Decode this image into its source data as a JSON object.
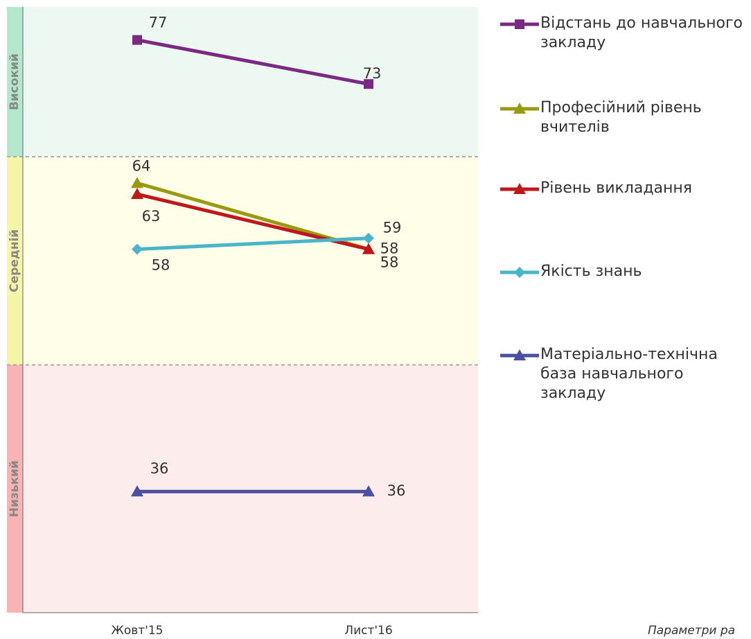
{
  "chart_data": {
    "type": "line",
    "categories": [
      "Жовт'15",
      "Лист'16"
    ],
    "ylim": [
      25,
      80
    ],
    "bands": [
      {
        "label": "Високий",
        "from": 66.4,
        "to": 80,
        "color": "#eef8f3",
        "side_color": "#b3e8cc"
      },
      {
        "label": "Середній",
        "from": 47.5,
        "to": 66.4,
        "color": "#fefee9",
        "side_color": "#f5f5a8"
      },
      {
        "label": "Низький",
        "from": 25,
        "to": 47.5,
        "color": "#fdecec",
        "side_color": "#f9b3b3"
      }
    ],
    "series": [
      {
        "name": "Відстань до навчального закладу",
        "color": "#7b2a84",
        "marker": "square",
        "values": [
          77,
          73
        ]
      },
      {
        "name": "Професійний рівень вчителів",
        "color": "#9a9a10",
        "marker": "triangle",
        "values": [
          64,
          58
        ]
      },
      {
        "name": "Рівень викладання",
        "color": "#c0171c",
        "marker": "triangle",
        "values": [
          63,
          58
        ]
      },
      {
        "name": "Якість знань",
        "color": "#4bb5c8",
        "marker": "diamond",
        "values": [
          58,
          59
        ]
      },
      {
        "name": "Матеріально-технічна база навчального закладу",
        "color": "#4a4fa0",
        "marker": "triangle",
        "values": [
          36,
          36
        ]
      }
    ],
    "footnote": "Параметри ра"
  }
}
